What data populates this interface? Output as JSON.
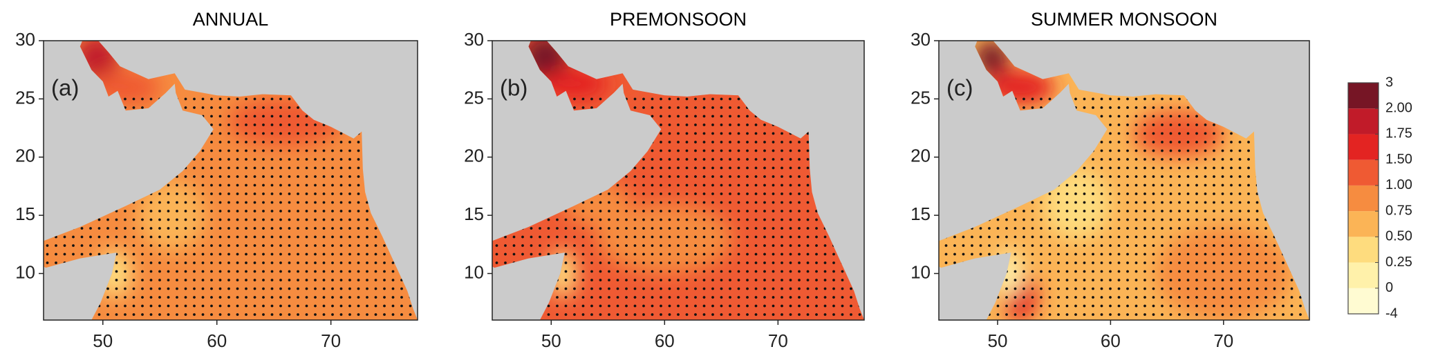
{
  "map": {
    "xlim": [
      44.8,
      77.6
    ],
    "ylim": [
      6,
      30
    ],
    "xticks": [
      50,
      60,
      70
    ],
    "yticks": [
      10,
      15,
      20,
      25,
      30
    ],
    "panels": [
      {
        "title": "ANNUAL",
        "label": "(a)"
      },
      {
        "title": "PREMONSOON",
        "label": "(b)"
      },
      {
        "title": "SUMMER MONSOON",
        "label": "(c)"
      }
    ],
    "colorbar": {
      "ticks": [
        -4,
        0,
        {
          "value": 0.25,
          "label": "0.25"
        },
        {
          "value": 0.5,
          "label": "0.50"
        },
        {
          "value": 0.75,
          "label": "0.75"
        },
        {
          "value": 1,
          "label": "1.00"
        },
        {
          "value": 1.5,
          "label": "1.50"
        },
        {
          "value": 1.75,
          "label": "1.75"
        },
        {
          "value": 2,
          "label": "2.00"
        },
        3
      ],
      "colors": [
        "#fffbd2",
        "#fff1aa",
        "#fedc7e",
        "#fbb456",
        "#f68c40",
        "#ef5a33",
        "#e32422",
        "#c11b29",
        "#761525"
      ]
    }
  }
}
